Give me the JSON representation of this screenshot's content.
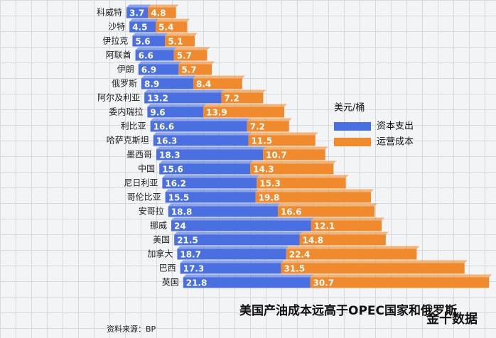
{
  "chart_data": {
    "type": "stacked-bar",
    "title": "美国产油成本远高于OPEC国家和俄罗斯",
    "legend_title": "美元/桶",
    "source": "资料来源：BP",
    "watermark": "金十数据",
    "categories": [
      "科威特",
      "沙特",
      "伊拉克",
      "阿联酋",
      "伊朗",
      "俄罗斯",
      "阿尔及利亚",
      "委内瑞拉",
      "利比亚",
      "哈萨克斯坦",
      "墨西哥",
      "中国",
      "尼日利亚",
      "哥伦比亚",
      "安哥拉",
      "挪威",
      "美国",
      "加拿大",
      "巴西",
      "英国"
    ],
    "series": [
      {
        "name": "资本支出",
        "color": "#4a6fe0",
        "values": [
          3.7,
          4.5,
          5.6,
          6.6,
          6.9,
          8.9,
          13.2,
          9.6,
          16.6,
          16.3,
          18.3,
          15.6,
          16.2,
          15.5,
          18.8,
          24,
          21.5,
          18.7,
          17.3,
          21.8
        ]
      },
      {
        "name": "运营成本",
        "color": "#f08a2c",
        "values": [
          4.8,
          5.4,
          5.1,
          5.7,
          5.7,
          8.4,
          7.2,
          13.9,
          7.2,
          11.5,
          10.7,
          14.3,
          15.3,
          19.8,
          16.6,
          12.1,
          14.8,
          22.4,
          31.5,
          30.7
        ]
      }
    ]
  }
}
